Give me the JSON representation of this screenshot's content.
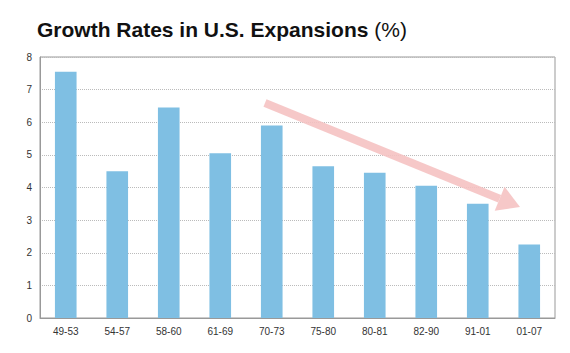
{
  "chart_data": {
    "type": "bar",
    "title": "Growth Rates in U.S. Expansions (%)",
    "categories": [
      "49-53",
      "54-57",
      "58-60",
      "61-69",
      "70-73",
      "75-80",
      "80-81",
      "82-90",
      "91-01",
      "01-07"
    ],
    "values": [
      7.55,
      4.5,
      6.45,
      5.05,
      5.9,
      4.65,
      4.45,
      4.05,
      3.5,
      2.25
    ],
    "color": "#7fbfe3",
    "ylim": [
      0,
      8
    ],
    "yticks": [
      0,
      1,
      2,
      3,
      4,
      5,
      6,
      7,
      8
    ],
    "grid": true
  }
}
